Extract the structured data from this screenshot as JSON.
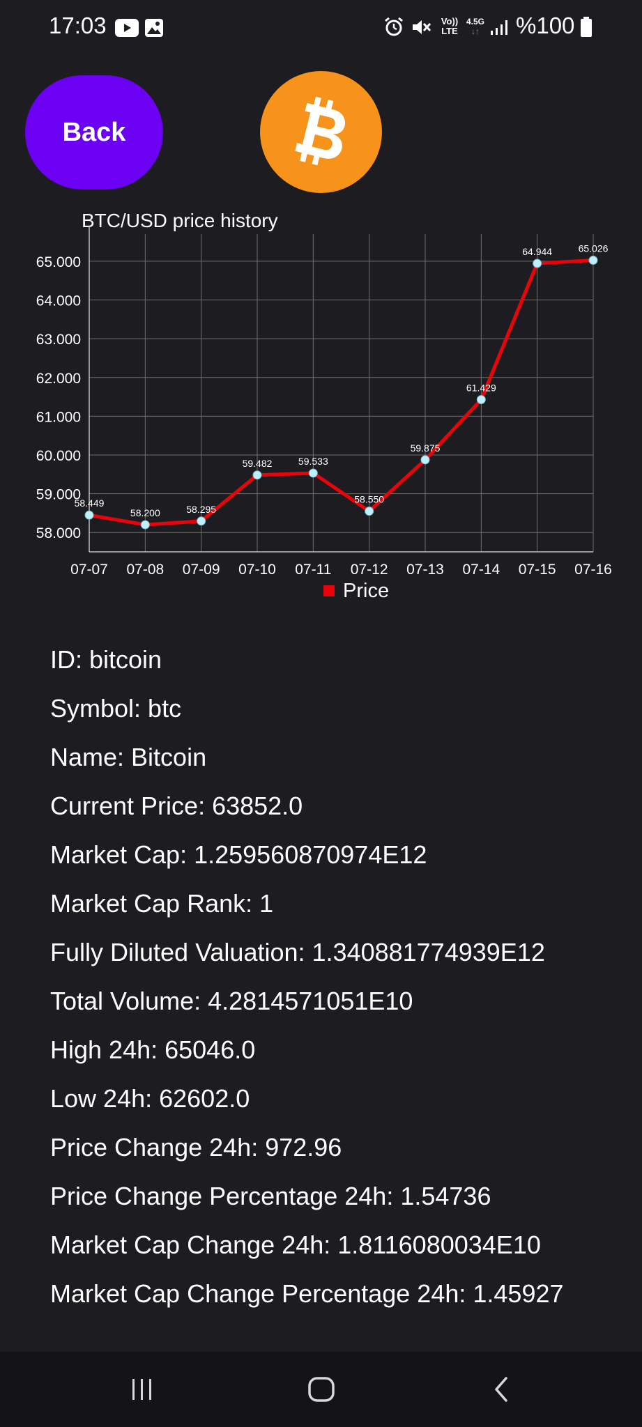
{
  "status_bar": {
    "time": "17:03",
    "battery": "%100",
    "icons": [
      "youtube-icon",
      "gallery-icon",
      "alarm-icon",
      "mute-icon",
      "volte-icon",
      "lte-4.5g-icon",
      "signal-icon",
      "battery-icon"
    ],
    "volte_label": "Vo))",
    "lte_label": "LTE",
    "network_label": "4.5G"
  },
  "header": {
    "back_label": "Back",
    "logo_icon": "bitcoin-icon",
    "back_color": "#6c00f3",
    "logo_color": "#f7931a"
  },
  "chart_data": {
    "type": "line",
    "title": "BTC/USD price history",
    "categories": [
      "07-07",
      "07-08",
      "07-09",
      "07-10",
      "07-11",
      "07-12",
      "07-13",
      "07-14",
      "07-15",
      "07-16"
    ],
    "series": [
      {
        "name": "Price",
        "values": [
          58449,
          58200,
          58295,
          59482,
          59533,
          58550,
          59875,
          61429,
          64944,
          65026
        ],
        "labels": [
          "58.449",
          "58.200",
          "58.295",
          "59.482",
          "59.533",
          "58.550",
          "59.875",
          "61.429",
          "64.944",
          "65.026"
        ],
        "color": "#e8040a"
      }
    ],
    "y_ticks": [
      58000,
      59000,
      60000,
      61000,
      62000,
      63000,
      64000,
      65000
    ],
    "y_tick_labels": [
      "58.000",
      "59.000",
      "60.000",
      "61.000",
      "62.000",
      "63.000",
      "64.000",
      "65.000"
    ],
    "ylim": [
      57500,
      65700
    ],
    "grid": true,
    "legend": "bottom-center",
    "point_color": "#bdf1ff"
  },
  "details": {
    "lines": [
      "ID: bitcoin",
      "Symbol: btc",
      "Name: Bitcoin",
      "Current Price: 63852.0",
      "Market Cap: 1.259560870974E12",
      "Market Cap Rank: 1",
      "Fully Diluted Valuation: 1.340881774939E12",
      "Total Volume: 4.2814571051E10",
      "High 24h: 65046.0",
      "Low 24h: 62602.0",
      "Price Change 24h: 972.96",
      "Price Change Percentage 24h: 1.54736",
      "Market Cap Change 24h: 1.8116080034E10",
      "Market Cap Change Percentage 24h: 1.45927"
    ]
  },
  "nav_bar": {
    "icons": [
      "recent-apps-icon",
      "home-icon",
      "back-icon"
    ]
  }
}
